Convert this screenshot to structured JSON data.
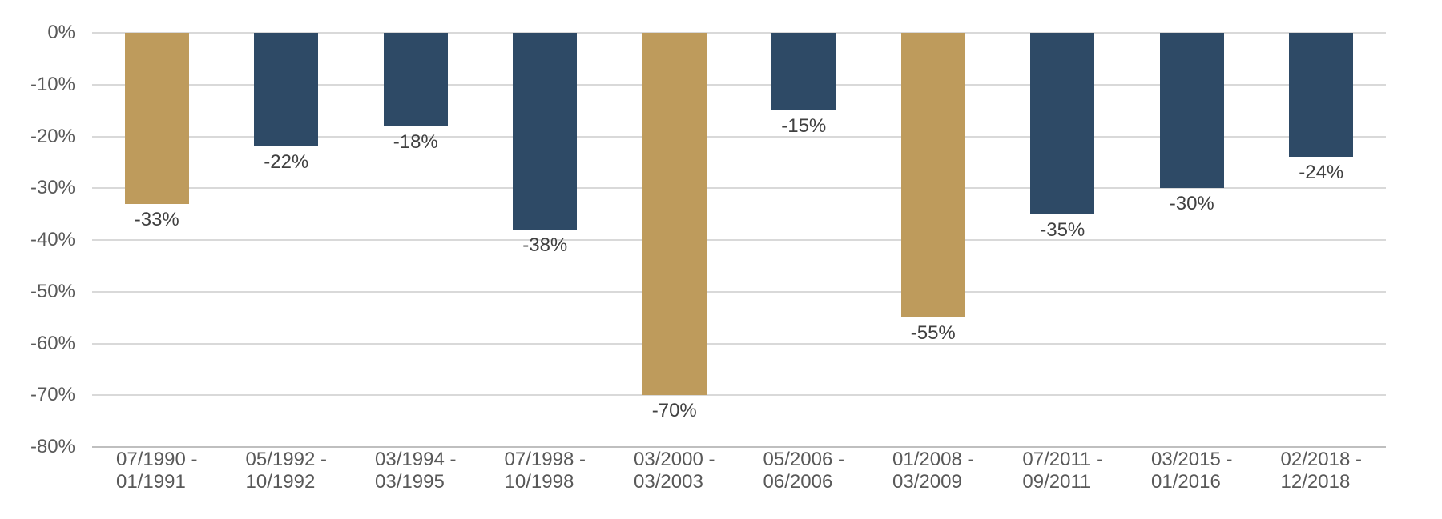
{
  "chart_data": {
    "type": "bar",
    "title": "",
    "xlabel": "",
    "ylabel": "",
    "categories": [
      [
        "07/1990 -",
        "01/1991"
      ],
      [
        "05/1992 -",
        "10/1992"
      ],
      [
        "03/1994 -",
        "03/1995"
      ],
      [
        "07/1998 -",
        "10/1998"
      ],
      [
        "03/2000 -",
        "03/2003"
      ],
      [
        "05/2006 -",
        "06/2006"
      ],
      [
        "01/2008 -",
        "03/2009"
      ],
      [
        "07/2011 -",
        "09/2011"
      ],
      [
        "03/2015 -",
        "01/2016"
      ],
      [
        "02/2018 -",
        "12/2018"
      ]
    ],
    "values": [
      -33,
      -22,
      -18,
      -38,
      -70,
      -15,
      -55,
      -35,
      -30,
      -24
    ],
    "data_labels": [
      "-33%",
      "-22%",
      "-18%",
      "-38%",
      "-70%",
      "-15%",
      "-55%",
      "-35%",
      "-30%",
      "-24%"
    ],
    "bar_color_keys": [
      "gold",
      "navy",
      "navy",
      "navy",
      "gold",
      "navy",
      "gold",
      "navy",
      "navy",
      "navy"
    ],
    "palette": {
      "gold": "#BE9B5C",
      "navy": "#2E4A66"
    },
    "ylim": [
      -80,
      0
    ],
    "y_ticks": [
      0,
      -10,
      -20,
      -30,
      -40,
      -50,
      -60,
      -70,
      -80
    ],
    "y_tick_labels": [
      "0%",
      "-10%",
      "-20%",
      "-30%",
      "-40%",
      "-50%",
      "-60%",
      "-70%",
      "-80%"
    ],
    "grid": true,
    "legend": "none",
    "colors": {
      "gridline": "#D9D9D9",
      "axis_line": "#BFBFBF",
      "tick_label": "#595959",
      "data_label": "#404040",
      "background": "#FFFFFF"
    }
  }
}
